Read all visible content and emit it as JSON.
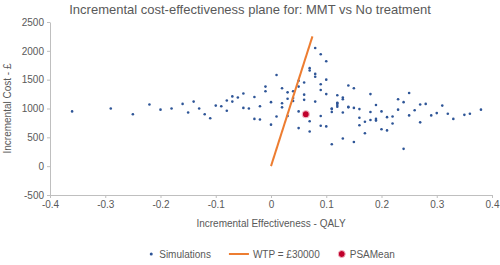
{
  "chart_data": {
    "type": "scatter",
    "title": "Incremental cost-effectiveness plane for: MMT vs No treatment",
    "x_label": "Incremental Effectiveness - QALY",
    "y_label": "Incremental Cost - £",
    "xlim": [
      -0.4,
      0.4
    ],
    "ylim": [
      -500,
      2500
    ],
    "xticks": [
      -0.4,
      -0.3,
      -0.2,
      -0.1,
      0,
      0.1,
      0.2,
      0.3,
      0.4
    ],
    "yticks": [
      -500,
      0,
      500,
      1000,
      1500,
      2000,
      2500
    ],
    "grid": false,
    "legend": "bottom",
    "series": [
      {
        "name": "Simulations",
        "type": "scatter",
        "marker": "circle",
        "color": "#2e5597",
        "x": [
          0.05,
          0.12,
          -0.03,
          0.18,
          0.09,
          0.02,
          0.25,
          -0.08,
          0.14,
          0.07,
          0.31,
          -0.12,
          0.04,
          0.21,
          0.11,
          -0.01,
          0.16,
          0.08,
          0.27,
          -0.05,
          0.1,
          0.03,
          0.19,
          -0.15,
          0.13,
          0.06,
          0.23,
          0.0,
          0.15,
          -0.09,
          0.35,
          0.08,
          -0.02,
          0.12,
          0.2,
          0.05,
          -0.18,
          0.09,
          0.28,
          0.01,
          0.17,
          -0.06,
          0.11,
          0.24,
          0.07,
          -0.11,
          0.14,
          0.03,
          0.32,
          0.1,
          -0.22,
          0.06,
          0.18,
          0.13,
          -0.04,
          0.22,
          0.09,
          0.02,
          0.26,
          -0.07,
          0.15,
          0.04,
          0.29,
          -0.13,
          0.08,
          0.19,
          0.12,
          -0.01,
          0.21,
          0.06,
          0.38,
          -0.25,
          0.1,
          0.16,
          0.03,
          -0.1,
          0.13,
          0.25,
          0.07,
          0.0,
          0.11,
          -0.16,
          0.22,
          0.05,
          0.17,
          -0.03,
          0.09,
          0.3,
          0.14,
          -0.08,
          0.02,
          0.2,
          -0.2,
          0.12,
          0.08,
          0.33,
          -0.05,
          0.15,
          0.06,
          0.23,
          -0.29,
          0.11,
          0.04,
          0.18,
          -0.14,
          0.27,
          0.09,
          0.01,
          0.16,
          -0.36,
          0.13,
          0.07,
          0.36,
          -0.02,
          0.19,
          0.1,
          -0.07,
          0.24,
          0.05,
          0.12
        ],
        "values": [
          950,
          1100,
          820,
          1250,
          700,
          1020,
          880,
          960,
          1400,
          780,
          1050,
          900,
          1180,
          620,
          990,
          1300,
          840,
          1120,
          760,
          1010,
          1500,
          870,
          1060,
          930,
          480,
          1150,
          980,
          720,
          1350,
          1040,
          890,
          1600,
          810,
          1230,
          950,
          660,
          1000,
          1420,
          1080,
          860,
          570,
          1190,
          940,
          1110,
          1700,
          830,
          1020,
          1280,
          910,
          690,
          1070,
          1450,
          800,
          1160,
          1000,
          740,
          1320,
          1090,
          970,
          1210,
          420,
          1130,
          880,
          1000,
          1550,
          790,
          1060,
          1380,
          850,
          1240,
          980,
          900,
          1820,
          710,
          1170,
          1050,
          930,
          1270,
          600,
          1110,
          1000,
          1080,
          860,
          1480,
          770,
          1200,
          1940,
          920,
          1030,
          1140,
          1350,
          640,
          980,
          1090,
          2050,
          820,
          1260,
          1010,
          890,
          1160,
          1000,
          380,
          1300,
          940,
          1120,
          1070,
          870,
          1580,
          990,
          950,
          1190,
          1660,
          910,
          1040,
          820,
          1250,
          1120,
          300,
          1380,
          1030
        ]
      },
      {
        "name": "WTP = £30000",
        "type": "line",
        "line_style": "solid",
        "color": "#ed7d31",
        "x": [
          0,
          0.075
        ],
        "values": [
          0,
          2250
        ]
      },
      {
        "name": "PSAMean",
        "type": "scatter",
        "marker": "circle",
        "color": "#c0002a",
        "x": [
          0.063
        ],
        "values": [
          900
        ]
      }
    ]
  }
}
